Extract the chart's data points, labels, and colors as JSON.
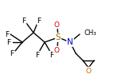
{
  "bg_color": "#ffffff",
  "bond_color": "#000000",
  "o_color": "#cc0000",
  "n_color": "#0000cc",
  "f_color": "#000000",
  "s_color": "#8b7000",
  "epoxide_o_color": "#cc6600",
  "line_width": 1.0,
  "font_size": 6.5,
  "fig_width": 1.43,
  "fig_height": 1.03,
  "dpi": 100,
  "xlim": [
    0,
    143
  ],
  "ylim": [
    0,
    103
  ]
}
